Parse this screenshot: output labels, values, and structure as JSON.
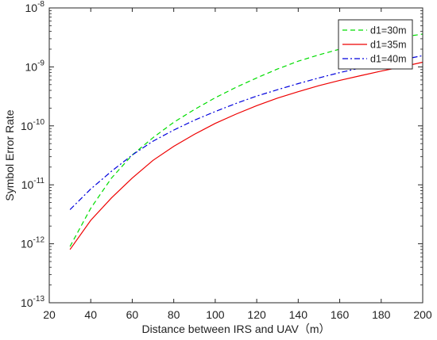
{
  "chart_data": {
    "type": "line",
    "xlabel": "Distance between IRS and UAV（m）",
    "ylabel": "Symbol Error Rate",
    "xlim": [
      20,
      200
    ],
    "ylim": [
      1e-13,
      1e-08
    ],
    "yscale": "log",
    "x_ticks": [
      "20",
      "40",
      "60",
      "80",
      "100",
      "120",
      "140",
      "160",
      "180",
      "200"
    ],
    "y_ticks": [
      {
        "base": "10",
        "exp": "-13"
      },
      {
        "base": "10",
        "exp": "-12"
      },
      {
        "base": "10",
        "exp": "-11"
      },
      {
        "base": "10",
        "exp": "-10"
      },
      {
        "base": "10",
        "exp": "-9"
      },
      {
        "base": "10",
        "exp": "-8"
      }
    ],
    "grid": false,
    "legend_position": "top-right",
    "series": [
      {
        "name": "d1=30m",
        "color": "#00dd00",
        "dash": "dashed",
        "x": [
          30,
          40,
          50,
          60,
          70,
          80,
          90,
          100,
          110,
          120,
          130,
          140,
          150,
          160,
          170,
          180,
          190,
          200
        ],
        "y": [
          9e-13,
          4e-12,
          1.3e-11,
          3.2e-11,
          6.3e-11,
          1.15e-10,
          1.9e-10,
          3e-10,
          4.5e-10,
          6.5e-10,
          9.2e-10,
          1.25e-09,
          1.6e-09,
          2e-09,
          2.4e-09,
          2.8e-09,
          3.2e-09,
          3.6e-09
        ]
      },
      {
        "name": "d1=35m",
        "color": "#ee0000",
        "dash": "solid",
        "x": [
          30,
          40,
          50,
          60,
          70,
          80,
          90,
          100,
          110,
          120,
          130,
          140,
          150,
          160,
          170,
          180,
          190,
          200
        ],
        "y": [
          8e-13,
          2.5e-12,
          6e-12,
          1.3e-11,
          2.6e-11,
          4.5e-11,
          7.2e-11,
          1.1e-10,
          1.58e-10,
          2.2e-10,
          2.95e-10,
          3.8e-10,
          4.8e-10,
          5.9e-10,
          7.1e-10,
          8.5e-10,
          1e-09,
          1.2e-09
        ]
      },
      {
        "name": "d1=40m",
        "color": "#0000dd",
        "dash": "dashdot",
        "x": [
          30,
          40,
          50,
          60,
          70,
          80,
          90,
          100,
          110,
          120,
          130,
          140,
          150,
          160,
          170,
          180,
          190,
          200
        ],
        "y": [
          3.8e-12,
          8.5e-12,
          1.7e-11,
          3.2e-11,
          5.5e-11,
          8.5e-11,
          1.25e-10,
          1.75e-10,
          2.4e-10,
          3.2e-10,
          4.1e-10,
          5.2e-10,
          6.5e-10,
          8e-10,
          9.6e-10,
          1.13e-09,
          1.32e-09,
          1.55e-09
        ]
      }
    ]
  }
}
